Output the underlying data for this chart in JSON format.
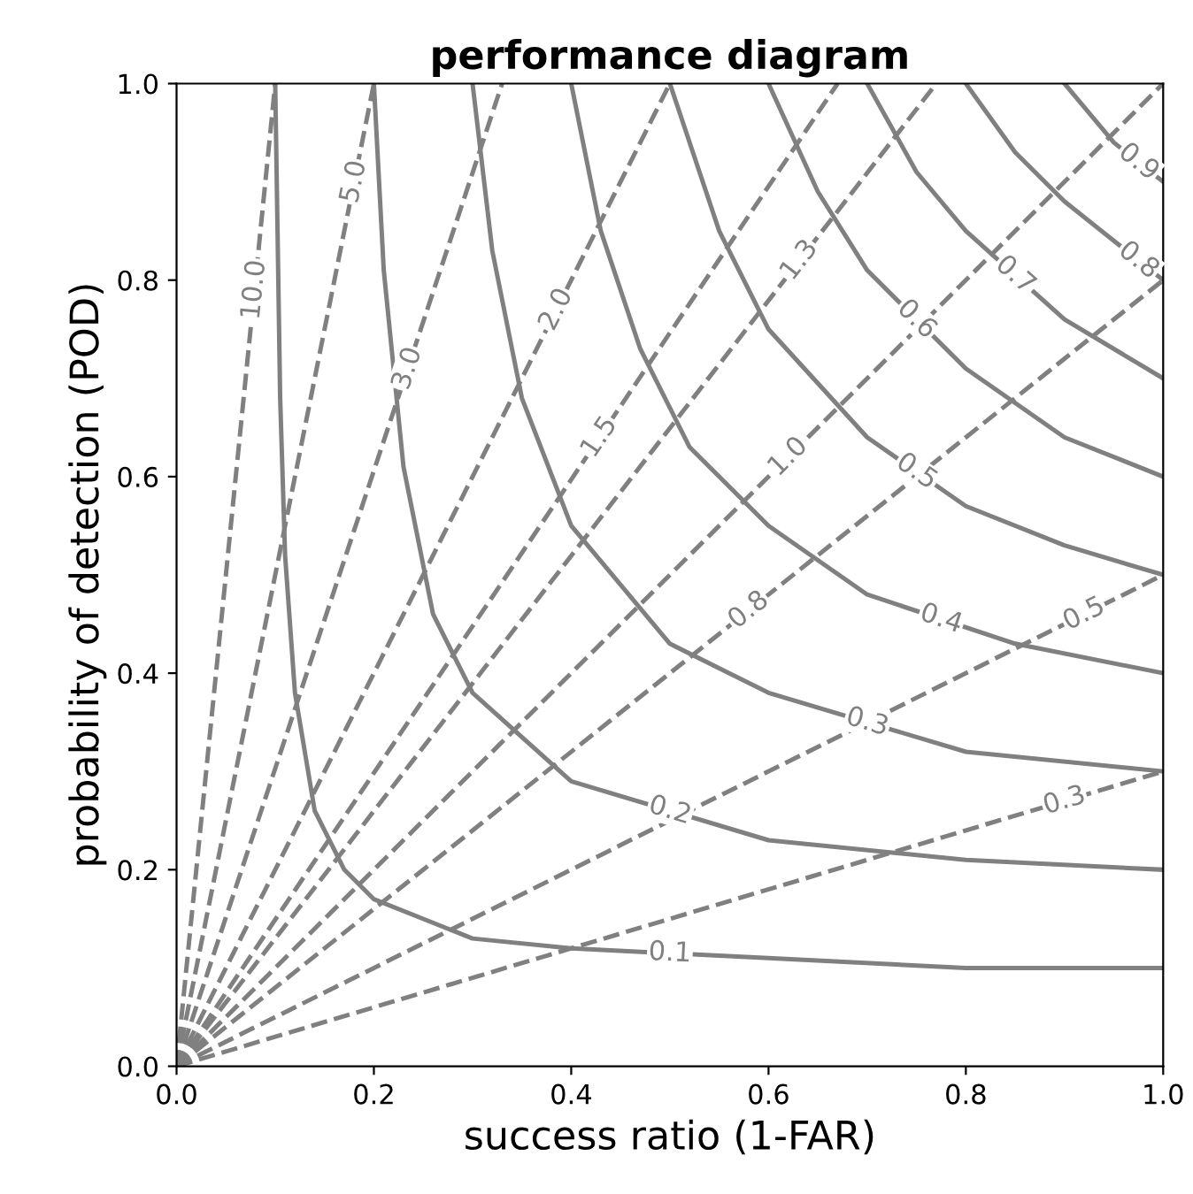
{
  "chart_data": {
    "type": "line",
    "title": "performance diagram",
    "xlabel": "success ratio (1-FAR)",
    "ylabel": "probability of detection (POD)",
    "xlim": [
      0,
      1
    ],
    "ylim": [
      0,
      1
    ],
    "xticks": [
      {
        "value": 0,
        "label": "0.0"
      },
      0.2,
      0.4,
      0.6,
      0.8,
      {
        "value": 1,
        "label": "1.0"
      }
    ],
    "yticks": [
      {
        "value": 0,
        "label": "0.0"
      },
      0.2,
      0.4,
      0.6,
      0.8,
      {
        "value": 1,
        "label": "1.0"
      }
    ],
    "grid": false,
    "legend": false,
    "series": [
      {
        "name": "0.1",
        "color": "#808080",
        "line_style": "solid",
        "x": [
          0.1,
          0.105,
          0.11,
          0.12,
          0.14,
          0.17,
          0.2,
          0.3,
          0.4,
          0.6,
          0.8,
          1.0
        ],
        "values": [
          1.0,
          0.68,
          0.52,
          0.38,
          0.26,
          0.2,
          0.17,
          0.13,
          0.12,
          0.11,
          0.1,
          0.1
        ]
      },
      {
        "name": "0.2",
        "color": "#808080",
        "line_style": "solid",
        "x": [
          0.2,
          0.21,
          0.23,
          0.26,
          0.3,
          0.4,
          0.6,
          0.8,
          1.0
        ],
        "values": [
          1.0,
          0.81,
          0.61,
          0.46,
          0.38,
          0.29,
          0.23,
          0.21,
          0.2
        ]
      },
      {
        "name": "0.3",
        "color": "#808080",
        "line_style": "solid",
        "x": [
          0.3,
          0.32,
          0.35,
          0.4,
          0.5,
          0.6,
          0.8,
          1.0
        ],
        "values": [
          1.0,
          0.83,
          0.68,
          0.55,
          0.43,
          0.38,
          0.32,
          0.3
        ]
      },
      {
        "name": "0.4",
        "color": "#808080",
        "line_style": "solid",
        "x": [
          0.4,
          0.43,
          0.47,
          0.52,
          0.6,
          0.7,
          0.85,
          1.0
        ],
        "values": [
          1.0,
          0.85,
          0.73,
          0.63,
          0.55,
          0.48,
          0.43,
          0.4
        ]
      },
      {
        "name": "0.5",
        "color": "#808080",
        "line_style": "solid",
        "x": [
          0.5,
          0.55,
          0.6,
          0.7,
          0.8,
          0.9,
          1.0
        ],
        "values": [
          1.0,
          0.85,
          0.75,
          0.64,
          0.57,
          0.53,
          0.5
        ]
      },
      {
        "name": "0.6",
        "color": "#808080",
        "line_style": "solid",
        "x": [
          0.6,
          0.65,
          0.7,
          0.8,
          0.9,
          1.0
        ],
        "values": [
          1.0,
          0.89,
          0.81,
          0.71,
          0.64,
          0.6
        ]
      },
      {
        "name": "0.7",
        "color": "#808080",
        "line_style": "solid",
        "x": [
          0.7,
          0.75,
          0.8,
          0.9,
          1.0
        ],
        "values": [
          1.0,
          0.91,
          0.85,
          0.76,
          0.7
        ]
      },
      {
        "name": "0.8",
        "color": "#808080",
        "line_style": "solid",
        "x": [
          0.8,
          0.85,
          0.9,
          0.95,
          1.0
        ],
        "values": [
          1.0,
          0.93,
          0.88,
          0.84,
          0.8
        ]
      },
      {
        "name": "0.9",
        "color": "#808080",
        "line_style": "solid",
        "x": [
          0.9,
          0.95,
          1.0
        ],
        "values": [
          1.0,
          0.94,
          0.9
        ]
      },
      {
        "name": "0.3",
        "color": "#808080",
        "line_style": "dashed",
        "x": [
          0,
          1.0
        ],
        "values": [
          0,
          0.3
        ]
      },
      {
        "name": "0.5",
        "color": "#808080",
        "line_style": "dashed",
        "x": [
          0,
          1.0
        ],
        "values": [
          0,
          0.5
        ]
      },
      {
        "name": "0.8",
        "color": "#808080",
        "line_style": "dashed",
        "x": [
          0,
          1.0
        ],
        "values": [
          0,
          0.8
        ]
      },
      {
        "name": "1.0",
        "color": "#808080",
        "line_style": "dashed",
        "x": [
          0,
          1.0
        ],
        "values": [
          0,
          1.0
        ]
      },
      {
        "name": "1.3",
        "color": "#808080",
        "line_style": "dashed",
        "x": [
          0,
          0.77
        ],
        "values": [
          0,
          1.0
        ]
      },
      {
        "name": "1.5",
        "color": "#808080",
        "line_style": "dashed",
        "x": [
          0,
          0.67
        ],
        "values": [
          0,
          1.0
        ]
      },
      {
        "name": "2.0",
        "color": "#808080",
        "line_style": "dashed",
        "x": [
          0,
          0.5
        ],
        "values": [
          0,
          1.0
        ]
      },
      {
        "name": "3.0",
        "color": "#808080",
        "line_style": "dashed",
        "x": [
          0,
          0.33
        ],
        "values": [
          0,
          1.0
        ]
      },
      {
        "name": "5.0",
        "color": "#808080",
        "line_style": "dashed",
        "x": [
          0,
          0.2
        ],
        "values": [
          0,
          1.0
        ]
      },
      {
        "name": "10.0",
        "color": "#808080",
        "line_style": "dashed",
        "x": [
          0,
          0.1
        ],
        "values": [
          0,
          1.0
        ]
      }
    ]
  }
}
